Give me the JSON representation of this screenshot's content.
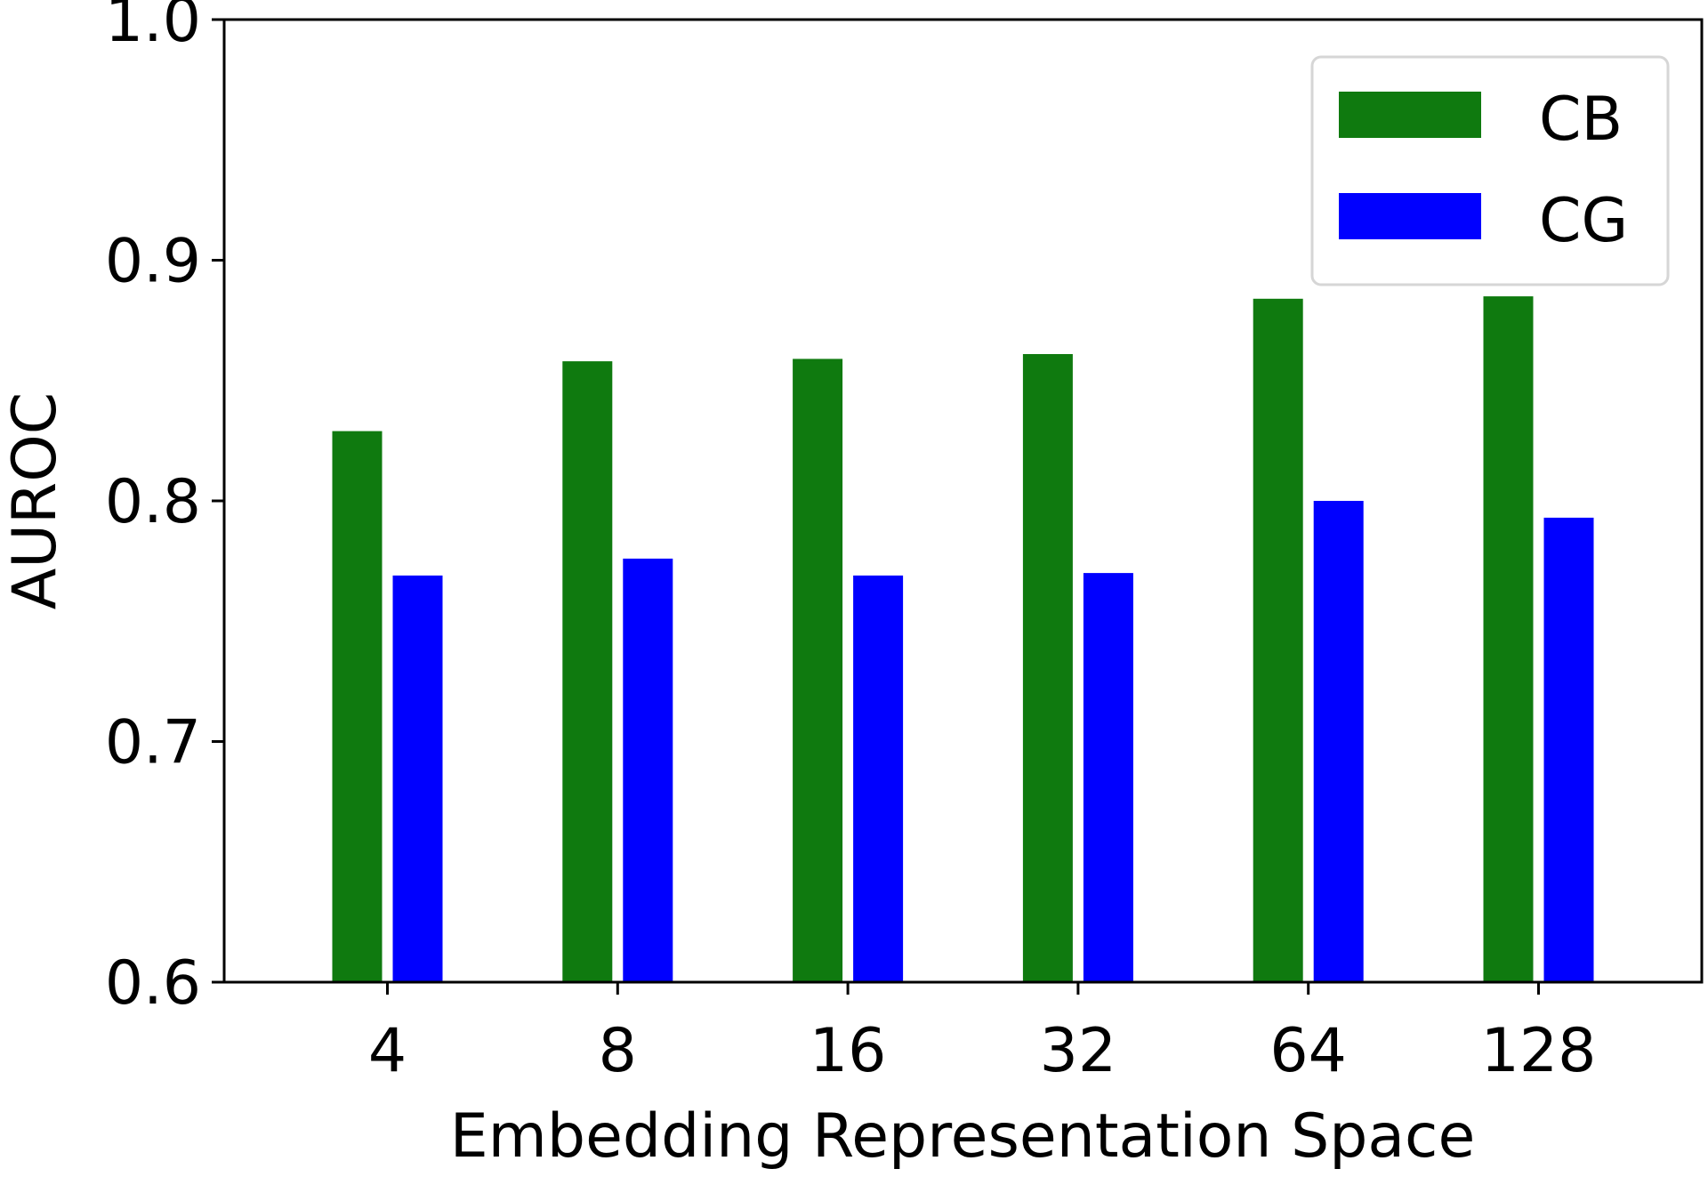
{
  "chart_data": {
    "type": "bar",
    "title": "",
    "xlabel": "Embedding Representation Space",
    "ylabel": "AUROC",
    "categories": [
      "4",
      "8",
      "16",
      "32",
      "64",
      "128"
    ],
    "ylim": [
      0.6,
      1.0
    ],
    "yticks": [
      "0.6",
      "0.7",
      "0.8",
      "0.9",
      "1.0"
    ],
    "ytick_values": [
      0.6,
      0.7,
      0.8,
      0.9,
      1.0
    ],
    "grid": false,
    "legend_position": "top-right",
    "series": [
      {
        "name": "CB",
        "color": "#0f7a0f",
        "values": [
          0.829,
          0.858,
          0.859,
          0.861,
          0.884,
          0.885
        ]
      },
      {
        "name": "CG",
        "color": "#0000ff",
        "values": [
          0.769,
          0.776,
          0.769,
          0.77,
          0.8,
          0.793
        ]
      }
    ]
  }
}
